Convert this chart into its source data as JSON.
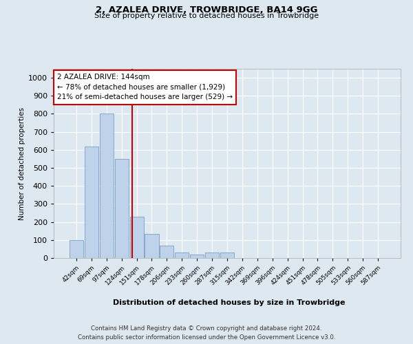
{
  "title1": "2, AZALEA DRIVE, TROWBRIDGE, BA14 9GG",
  "title2": "Size of property relative to detached houses in Trowbridge",
  "xlabel": "Distribution of detached houses by size in Trowbridge",
  "ylabel": "Number of detached properties",
  "bin_labels": [
    "42sqm",
    "69sqm",
    "97sqm",
    "124sqm",
    "151sqm",
    "178sqm",
    "206sqm",
    "233sqm",
    "260sqm",
    "287sqm",
    "315sqm",
    "342sqm",
    "369sqm",
    "396sqm",
    "424sqm",
    "451sqm",
    "478sqm",
    "505sqm",
    "533sqm",
    "560sqm",
    "587sqm"
  ],
  "bar_values": [
    100,
    620,
    800,
    550,
    230,
    135,
    70,
    30,
    20,
    30,
    30,
    0,
    0,
    0,
    0,
    0,
    0,
    0,
    0,
    0,
    0
  ],
  "bar_color": "#bed3e9",
  "bar_edge_color": "#7a9ec8",
  "vline_color": "#cc0000",
  "vline_pos": 3.72,
  "annotation_text": "2 AZALEA DRIVE: 144sqm\n← 78% of detached houses are smaller (1,929)\n21% of semi-detached houses are larger (529) →",
  "bg_color": "#dde8f0",
  "plot_bg_color": "#dde8f0",
  "footer_text": "Contains HM Land Registry data © Crown copyright and database right 2024.\nContains public sector information licensed under the Open Government Licence v3.0.",
  "ylim": [
    0,
    1050
  ],
  "yticks": [
    0,
    100,
    200,
    300,
    400,
    500,
    600,
    700,
    800,
    900,
    1000
  ]
}
